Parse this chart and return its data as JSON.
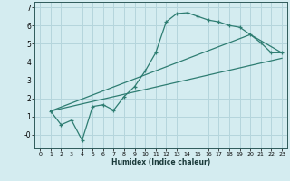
{
  "xlabel": "Humidex (Indice chaleur)",
  "background_color": "#d4ecf0",
  "grid_color": "#b5d5dc",
  "line_color": "#2e7d72",
  "xlim": [
    -0.5,
    23.5
  ],
  "ylim": [
    -0.75,
    7.3
  ],
  "yticks": [
    0,
    1,
    2,
    3,
    4,
    5,
    6,
    7
  ],
  "xticks": [
    0,
    1,
    2,
    3,
    4,
    5,
    6,
    7,
    8,
    9,
    10,
    11,
    12,
    13,
    14,
    15,
    16,
    17,
    18,
    19,
    20,
    21,
    22,
    23
  ],
  "curve1_x": [
    1,
    2,
    3,
    4,
    5,
    6,
    7,
    8,
    9,
    10,
    11,
    12,
    13,
    14,
    15,
    16,
    17,
    18,
    19,
    20,
    21,
    22,
    23
  ],
  "curve1_y": [
    1.3,
    0.55,
    0.8,
    -0.3,
    1.55,
    1.65,
    1.35,
    2.1,
    2.65,
    3.5,
    4.5,
    6.2,
    6.65,
    6.7,
    6.5,
    6.3,
    6.2,
    6.0,
    5.9,
    5.5,
    5.05,
    4.5,
    4.5
  ],
  "curve2_x": [
    1,
    20,
    23
  ],
  "curve2_y": [
    1.3,
    5.5,
    4.5
  ],
  "curve3_x": [
    1,
    23
  ],
  "curve3_y": [
    1.3,
    4.2
  ]
}
